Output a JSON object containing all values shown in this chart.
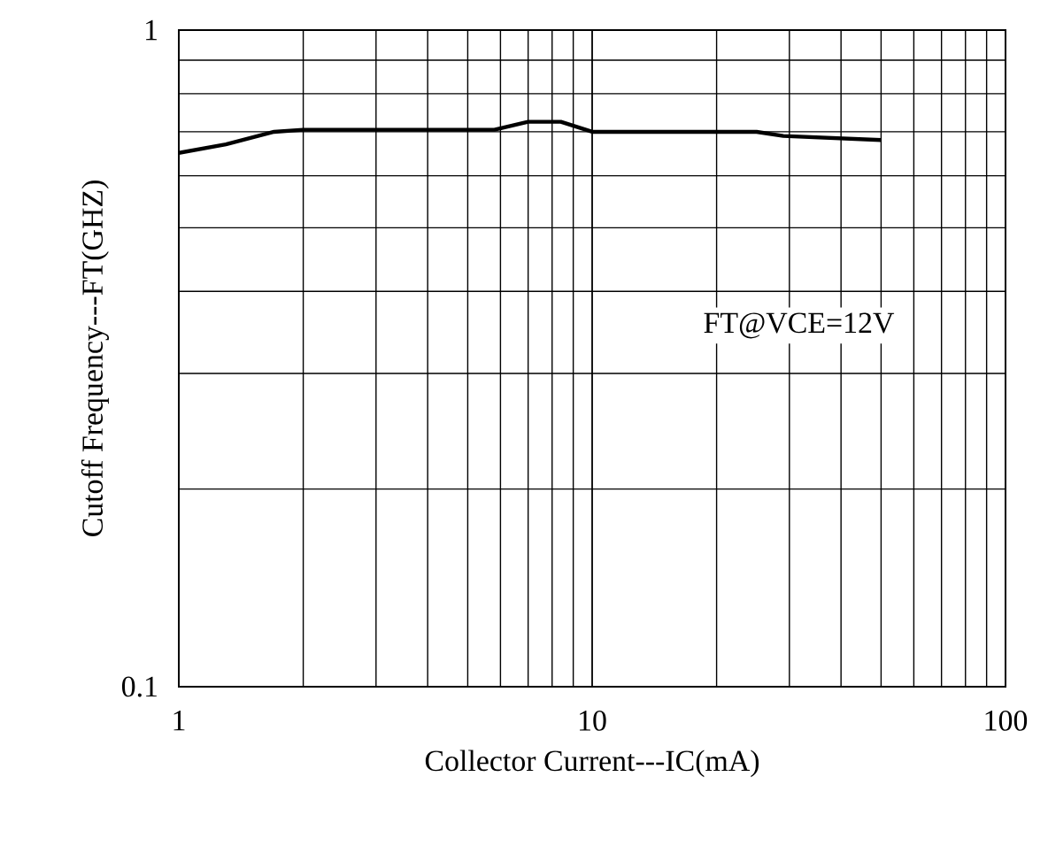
{
  "chart_data": {
    "type": "line",
    "xlabel": "Collector Current---IC(mA)",
    "ylabel": "Cutoff Frequency---FT(GHZ)",
    "log": "xy",
    "xlim": [
      1,
      100
    ],
    "xticks": [
      1,
      10,
      100
    ],
    "ylim": [
      0.1,
      1
    ],
    "yticks": [
      0.1,
      1
    ],
    "grid": true,
    "marker": "none",
    "line_style": "solid",
    "annotations": [
      "FT@VCE=12V"
    ],
    "series": [
      {
        "color": "#000000",
        "x": [
          1,
          1.3,
          1.7,
          2,
          5.8,
          7,
          8.4,
          10,
          25,
          29,
          50
        ],
        "values": [
          0.65,
          0.67,
          0.7,
          0.705,
          0.705,
          0.725,
          0.725,
          0.7,
          0.7,
          0.69,
          0.68
        ]
      }
    ]
  }
}
